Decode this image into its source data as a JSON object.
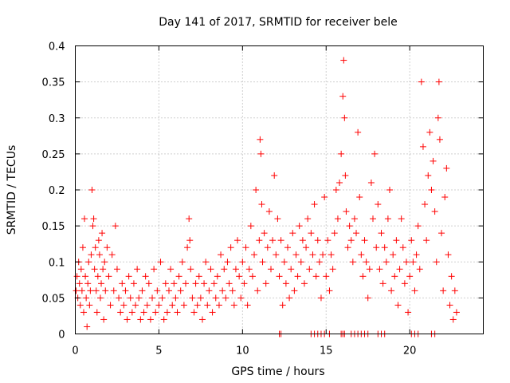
{
  "chart_data": {
    "type": "scatter",
    "title": "Day 141 of 2017, SRMTID for receiver bele",
    "xlabel": "GPS time / hours",
    "ylabel": "SRMTID / TECUs",
    "xlim": [
      0,
      24.4
    ],
    "ylim": [
      0,
      0.4
    ],
    "x_ticks": [
      0,
      5,
      10,
      15,
      20
    ],
    "x_tick_labels": [
      "0",
      "5",
      "10",
      "15",
      "20"
    ],
    "y_ticks": [
      0,
      0.05,
      0.1,
      0.15,
      0.2,
      0.25,
      0.3,
      0.35,
      0.4
    ],
    "y_tick_labels": [
      "0",
      "0.05",
      "0.1",
      "0.15",
      "0.2",
      "0.25",
      "0.3",
      "0.35",
      "0.4"
    ],
    "grid": true,
    "marker": "+",
    "color": "#ff0000",
    "series": [
      {
        "name": "SRMTID",
        "points": [
          [
            0.05,
            0.06
          ],
          [
            0.1,
            0.08
          ],
          [
            0.15,
            0.05
          ],
          [
            0.2,
            0.1
          ],
          [
            0.25,
            0.07
          ],
          [
            0.3,
            0.04
          ],
          [
            0.35,
            0.09
          ],
          [
            0.4,
            0.06
          ],
          [
            0.45,
            0.12
          ],
          [
            0.5,
            0.03
          ],
          [
            0.55,
            0.16
          ],
          [
            0.6,
            0.08
          ],
          [
            0.65,
            0.05
          ],
          [
            0.7,
            0.01
          ],
          [
            0.75,
            0.07
          ],
          [
            0.8,
            0.1
          ],
          [
            0.85,
            0.04
          ],
          [
            0.9,
            0.06
          ],
          [
            0.95,
            0.11
          ],
          [
            1.0,
            0.2
          ],
          [
            1.05,
            0.15
          ],
          [
            1.1,
            0.16
          ],
          [
            1.15,
            0.09
          ],
          [
            1.2,
            0.12
          ],
          [
            1.25,
            0.06
          ],
          [
            1.3,
            0.03
          ],
          [
            1.35,
            0.08
          ],
          [
            1.4,
            0.13
          ],
          [
            1.45,
            0.11
          ],
          [
            1.5,
            0.05
          ],
          [
            1.55,
            0.07
          ],
          [
            1.6,
            0.14
          ],
          [
            1.65,
            0.09
          ],
          [
            1.7,
            0.02
          ],
          [
            1.75,
            0.1
          ],
          [
            1.8,
            0.06
          ],
          [
            1.9,
            0.12
          ],
          [
            2.0,
            0.08
          ],
          [
            2.1,
            0.04
          ],
          [
            2.2,
            0.11
          ],
          [
            2.3,
            0.06
          ],
          [
            2.4,
            0.15
          ],
          [
            2.5,
            0.09
          ],
          [
            2.6,
            0.05
          ],
          [
            2.7,
            0.03
          ],
          [
            2.8,
            0.07
          ],
          [
            2.9,
            0.04
          ],
          [
            3.0,
            0.06
          ],
          [
            3.1,
            0.02
          ],
          [
            3.2,
            0.08
          ],
          [
            3.3,
            0.05
          ],
          [
            3.4,
            0.03
          ],
          [
            3.5,
            0.07
          ],
          [
            3.6,
            0.04
          ],
          [
            3.7,
            0.09
          ],
          [
            3.8,
            0.05
          ],
          [
            3.9,
            0.02
          ],
          [
            4.0,
            0.06
          ],
          [
            4.1,
            0.03
          ],
          [
            4.2,
            0.08
          ],
          [
            4.3,
            0.04
          ],
          [
            4.4,
            0.07
          ],
          [
            4.5,
            0.02
          ],
          [
            4.6,
            0.05
          ],
          [
            4.7,
            0.09
          ],
          [
            4.8,
            0.03
          ],
          [
            4.9,
            0.06
          ],
          [
            5.0,
            0.04
          ],
          [
            5.1,
            0.1
          ],
          [
            5.2,
            0.05
          ],
          [
            5.3,
            0.02
          ],
          [
            5.4,
            0.07
          ],
          [
            5.5,
            0.03
          ],
          [
            5.6,
            0.06
          ],
          [
            5.7,
            0.09
          ],
          [
            5.8,
            0.04
          ],
          [
            5.9,
            0.07
          ],
          [
            6.0,
            0.05
          ],
          [
            6.1,
            0.03
          ],
          [
            6.2,
            0.08
          ],
          [
            6.3,
            0.06
          ],
          [
            6.4,
            0.1
          ],
          [
            6.5,
            0.04
          ],
          [
            6.6,
            0.07
          ],
          [
            6.7,
            0.12
          ],
          [
            6.8,
            0.16
          ],
          [
            6.85,
            0.13
          ],
          [
            6.9,
            0.09
          ],
          [
            7.0,
            0.05
          ],
          [
            7.1,
            0.03
          ],
          [
            7.2,
            0.07
          ],
          [
            7.3,
            0.04
          ],
          [
            7.4,
            0.08
          ],
          [
            7.5,
            0.05
          ],
          [
            7.6,
            0.02
          ],
          [
            7.7,
            0.07
          ],
          [
            7.8,
            0.1
          ],
          [
            7.9,
            0.04
          ],
          [
            8.0,
            0.06
          ],
          [
            8.1,
            0.09
          ],
          [
            8.2,
            0.03
          ],
          [
            8.3,
            0.07
          ],
          [
            8.4,
            0.05
          ],
          [
            8.5,
            0.08
          ],
          [
            8.6,
            0.04
          ],
          [
            8.7,
            0.11
          ],
          [
            8.8,
            0.06
          ],
          [
            8.9,
            0.09
          ],
          [
            9.0,
            0.05
          ],
          [
            9.1,
            0.1
          ],
          [
            9.2,
            0.07
          ],
          [
            9.3,
            0.12
          ],
          [
            9.4,
            0.06
          ],
          [
            9.5,
            0.04
          ],
          [
            9.6,
            0.09
          ],
          [
            9.7,
            0.13
          ],
          [
            9.8,
            0.08
          ],
          [
            9.9,
            0.05
          ],
          [
            10.0,
            0.1
          ],
          [
            10.1,
            0.07
          ],
          [
            10.2,
            0.12
          ],
          [
            10.3,
            0.04
          ],
          [
            10.4,
            0.09
          ],
          [
            10.5,
            0.15
          ],
          [
            10.6,
            0.08
          ],
          [
            10.7,
            0.11
          ],
          [
            10.8,
            0.2
          ],
          [
            10.9,
            0.06
          ],
          [
            11.0,
            0.13
          ],
          [
            11.05,
            0.27
          ],
          [
            11.1,
            0.25
          ],
          [
            11.15,
            0.18
          ],
          [
            11.2,
            0.1
          ],
          [
            11.3,
            0.14
          ],
          [
            11.4,
            0.07
          ],
          [
            11.5,
            0.12
          ],
          [
            11.6,
            0.17
          ],
          [
            11.7,
            0.09
          ],
          [
            11.8,
            0.13
          ],
          [
            11.9,
            0.22
          ],
          [
            12.0,
            0.11
          ],
          [
            12.1,
            0.16
          ],
          [
            12.2,
            0.08
          ],
          [
            12.3,
            0.13
          ],
          [
            12.4,
            0.04
          ],
          [
            12.5,
            0.1
          ],
          [
            12.6,
            0.07
          ],
          [
            12.7,
            0.12
          ],
          [
            12.8,
            0.05
          ],
          [
            12.9,
            0.09
          ],
          [
            13.0,
            0.14
          ],
          [
            13.1,
            0.06
          ],
          [
            13.2,
            0.11
          ],
          [
            13.3,
            0.08
          ],
          [
            13.4,
            0.15
          ],
          [
            13.5,
            0.1
          ],
          [
            13.6,
            0.13
          ],
          [
            13.7,
            0.07
          ],
          [
            13.8,
            0.12
          ],
          [
            13.9,
            0.16
          ],
          [
            14.0,
            0.09
          ],
          [
            14.1,
            0.14
          ],
          [
            14.2,
            0.11
          ],
          [
            14.3,
            0.18
          ],
          [
            14.4,
            0.08
          ],
          [
            14.5,
            0.13
          ],
          [
            14.6,
            0.1
          ],
          [
            14.7,
            0.05
          ],
          [
            14.8,
            0.11
          ],
          [
            14.9,
            0.19
          ],
          [
            15.0,
            0.08
          ],
          [
            15.1,
            0.13
          ],
          [
            15.2,
            0.06
          ],
          [
            15.3,
            0.11
          ],
          [
            15.4,
            0.09
          ],
          [
            15.5,
            0.14
          ],
          [
            15.6,
            0.2
          ],
          [
            15.7,
            0.16
          ],
          [
            15.8,
            0.21
          ],
          [
            15.9,
            0.25
          ],
          [
            16.0,
            0.33
          ],
          [
            16.05,
            0.38
          ],
          [
            16.1,
            0.3
          ],
          [
            16.15,
            0.22
          ],
          [
            16.2,
            0.17
          ],
          [
            16.3,
            0.12
          ],
          [
            16.4,
            0.15
          ],
          [
            16.5,
            0.13
          ],
          [
            16.6,
            0.1
          ],
          [
            16.7,
            0.16
          ],
          [
            16.8,
            0.14
          ],
          [
            16.9,
            0.28
          ],
          [
            17.0,
            0.19
          ],
          [
            17.1,
            0.11
          ],
          [
            17.2,
            0.08
          ],
          [
            17.3,
            0.13
          ],
          [
            17.4,
            0.1
          ],
          [
            17.5,
            0.05
          ],
          [
            17.6,
            0.09
          ],
          [
            17.7,
            0.21
          ],
          [
            17.8,
            0.16
          ],
          [
            17.9,
            0.25
          ],
          [
            18.0,
            0.12
          ],
          [
            18.1,
            0.18
          ],
          [
            18.2,
            0.09
          ],
          [
            18.3,
            0.14
          ],
          [
            18.4,
            0.07
          ],
          [
            18.5,
            0.12
          ],
          [
            18.6,
            0.1
          ],
          [
            18.7,
            0.16
          ],
          [
            18.8,
            0.2
          ],
          [
            18.9,
            0.06
          ],
          [
            19.0,
            0.11
          ],
          [
            19.1,
            0.08
          ],
          [
            19.2,
            0.13
          ],
          [
            19.3,
            0.04
          ],
          [
            19.4,
            0.09
          ],
          [
            19.5,
            0.16
          ],
          [
            19.6,
            0.12
          ],
          [
            19.7,
            0.07
          ],
          [
            19.8,
            0.1
          ],
          [
            19.9,
            0.03
          ],
          [
            20.0,
            0.08
          ],
          [
            20.1,
            0.13
          ],
          [
            20.2,
            0.1
          ],
          [
            20.3,
            0.06
          ],
          [
            20.4,
            0.11
          ],
          [
            20.5,
            0.15
          ],
          [
            20.6,
            0.09
          ],
          [
            20.7,
            0.35
          ],
          [
            20.8,
            0.26
          ],
          [
            20.9,
            0.18
          ],
          [
            21.0,
            0.13
          ],
          [
            21.1,
            0.22
          ],
          [
            21.2,
            0.28
          ],
          [
            21.3,
            0.2
          ],
          [
            21.4,
            0.24
          ],
          [
            21.5,
            0.17
          ],
          [
            21.6,
            0.1
          ],
          [
            21.7,
            0.3
          ],
          [
            21.75,
            0.35
          ],
          [
            21.8,
            0.27
          ],
          [
            21.9,
            0.14
          ],
          [
            22.0,
            0.06
          ],
          [
            22.1,
            0.19
          ],
          [
            22.2,
            0.23
          ],
          [
            22.3,
            0.11
          ],
          [
            22.4,
            0.04
          ],
          [
            22.5,
            0.08
          ],
          [
            22.6,
            0.02
          ],
          [
            22.7,
            0.06
          ],
          [
            22.8,
            0.03
          ]
        ],
        "zero_points_x": [
          12.2,
          12.3,
          14.1,
          14.3,
          14.5,
          14.7,
          14.9,
          15.2,
          15.9,
          16.0,
          16.1,
          16.5,
          16.7,
          16.9,
          17.1,
          17.3,
          17.5,
          18.1,
          18.3,
          18.5,
          20.1,
          20.3,
          20.5,
          21.3,
          21.5
        ]
      }
    ]
  }
}
